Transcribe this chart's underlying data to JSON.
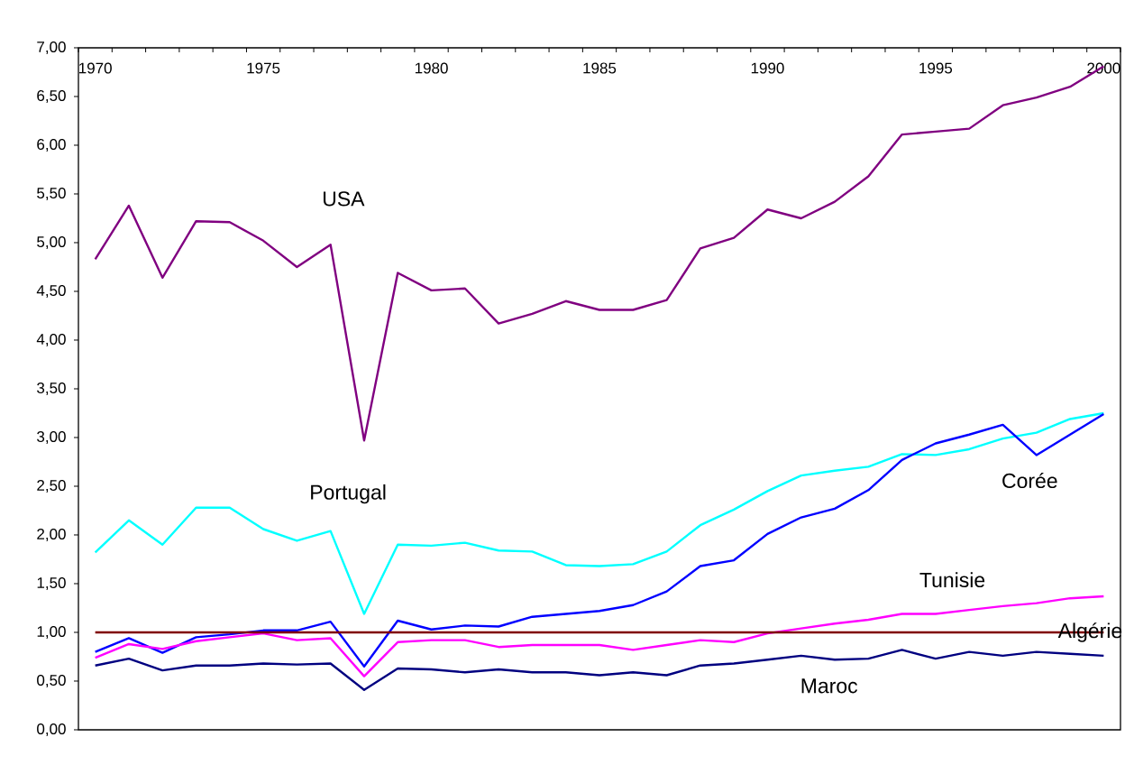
{
  "chart_data": {
    "type": "line",
    "categories": [
      "1970",
      null,
      null,
      null,
      null,
      "1975",
      null,
      null,
      null,
      null,
      "1980",
      null,
      null,
      null,
      null,
      "1985",
      null,
      null,
      null,
      null,
      "1990",
      null,
      null,
      null,
      null,
      "1995",
      null,
      null,
      null,
      null,
      "2000"
    ],
    "series": [
      {
        "name": "USA",
        "color": "#800080",
        "values": [
          4.83,
          5.38,
          4.64,
          5.22,
          5.21,
          5.02,
          4.75,
          4.98,
          2.97,
          4.69,
          4.51,
          4.53,
          4.17,
          4.27,
          4.4,
          4.31,
          4.31,
          4.41,
          4.94,
          5.05,
          5.34,
          5.25,
          5.42,
          5.68,
          6.11,
          6.14,
          6.17,
          6.41,
          6.49,
          6.6,
          6.81
        ]
      },
      {
        "name": "Portugal",
        "color": "#00ffff",
        "values": [
          1.82,
          2.15,
          1.9,
          2.28,
          2.28,
          2.06,
          1.94,
          2.04,
          1.19,
          1.9,
          1.89,
          1.92,
          1.84,
          1.83,
          1.69,
          1.68,
          1.7,
          1.83,
          2.1,
          2.26,
          2.45,
          2.61,
          2.66,
          2.7,
          2.83,
          2.82,
          2.88,
          2.99,
          3.05,
          3.19,
          3.25
        ]
      },
      {
        "name": "Corée",
        "color": "#0000ff",
        "values": [
          0.8,
          0.94,
          0.79,
          0.95,
          0.98,
          1.02,
          1.02,
          1.11,
          0.65,
          1.12,
          1.03,
          1.07,
          1.06,
          1.16,
          1.19,
          1.22,
          1.28,
          1.42,
          1.68,
          1.74,
          2.01,
          2.18,
          2.27,
          2.46,
          2.77,
          2.94,
          3.03,
          3.13,
          2.82,
          3.03,
          3.24
        ]
      },
      {
        "name": "Tunisie",
        "color": "#ff00ff",
        "values": [
          0.74,
          0.88,
          0.83,
          0.91,
          0.95,
          0.99,
          0.92,
          0.94,
          0.55,
          0.9,
          0.92,
          0.92,
          0.85,
          0.87,
          0.87,
          0.87,
          0.82,
          0.87,
          0.92,
          0.9,
          0.99,
          1.04,
          1.09,
          1.13,
          1.19,
          1.19,
          1.23,
          1.27,
          1.3,
          1.35,
          1.37
        ]
      },
      {
        "name": "Algérie",
        "color": "#800000",
        "values": [
          1,
          1,
          1,
          1,
          1,
          1,
          1,
          1,
          1,
          1,
          1,
          1,
          1,
          1,
          1,
          1,
          1,
          1,
          1,
          1,
          1,
          1,
          1,
          1,
          1,
          1,
          1,
          1,
          1,
          1,
          1
        ]
      },
      {
        "name": "Maroc",
        "color": "#000080",
        "values": [
          0.66,
          0.73,
          0.61,
          0.66,
          0.66,
          0.68,
          0.67,
          0.68,
          0.41,
          0.63,
          0.62,
          0.59,
          0.62,
          0.59,
          0.59,
          0.56,
          0.59,
          0.56,
          0.66,
          0.68,
          0.72,
          0.76,
          0.72,
          0.73,
          0.82,
          0.73,
          0.8,
          0.76,
          0.8,
          0.78,
          0.76
        ]
      }
    ],
    "ylim": [
      0,
      7
    ],
    "yticks": [
      {
        "value": 0,
        "label": "0,00"
      },
      {
        "value": 0.5,
        "label": "0,50"
      },
      {
        "value": 1,
        "label": "1,00"
      },
      {
        "value": 1.5,
        "label": "1,50"
      },
      {
        "value": 2,
        "label": "2,00"
      },
      {
        "value": 2.5,
        "label": "2,50"
      },
      {
        "value": 3,
        "label": "3,00"
      },
      {
        "value": 3.5,
        "label": "3,50"
      },
      {
        "value": 4,
        "label": "4,00"
      },
      {
        "value": 4.5,
        "label": "4,50"
      },
      {
        "value": 5,
        "label": "5,00"
      },
      {
        "value": 5.5,
        "label": "5,50"
      },
      {
        "value": 6,
        "label": "6,00"
      },
      {
        "value": 6.5,
        "label": "6,50"
      },
      {
        "value": 7,
        "label": "7,00"
      }
    ],
    "marker": "none",
    "line_style": "solid"
  }
}
